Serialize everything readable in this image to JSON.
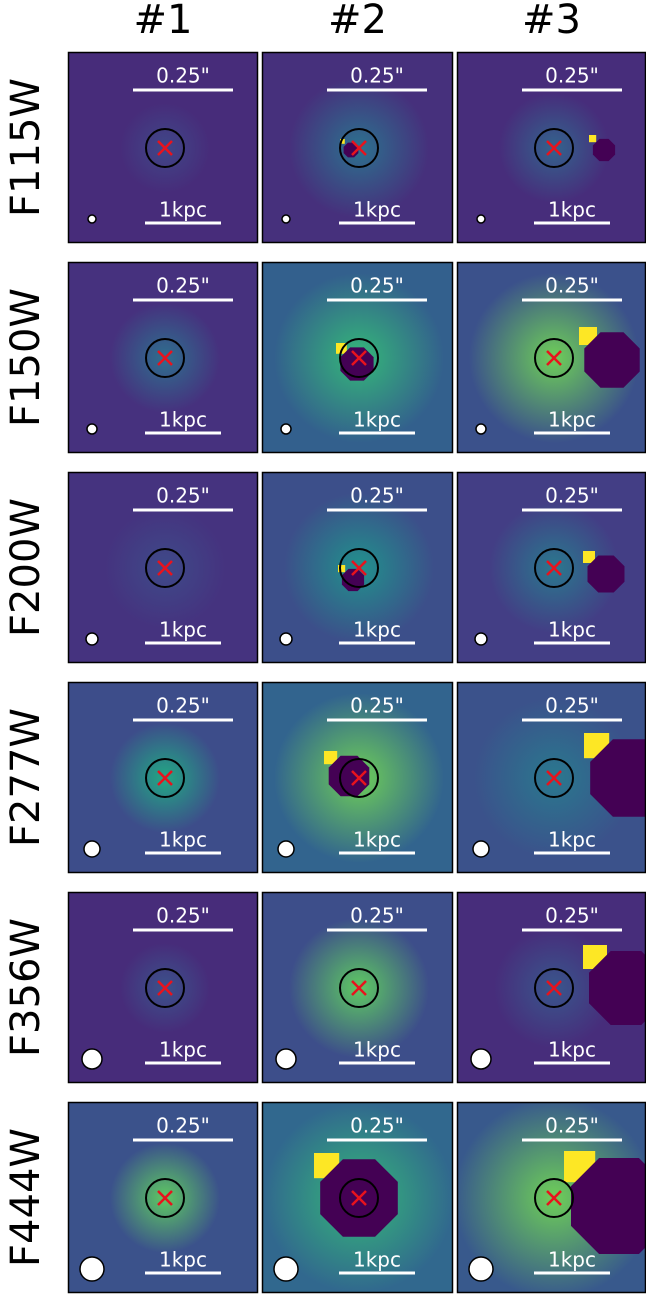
{
  "columns": [
    "#1",
    "#2",
    "#3"
  ],
  "rows": [
    "F115W",
    "F150W",
    "F200W",
    "F277W",
    "F356W",
    "F444W"
  ],
  "scale_bar_angular": "0.25\"",
  "scale_bar_physical": "1kpc"
}
